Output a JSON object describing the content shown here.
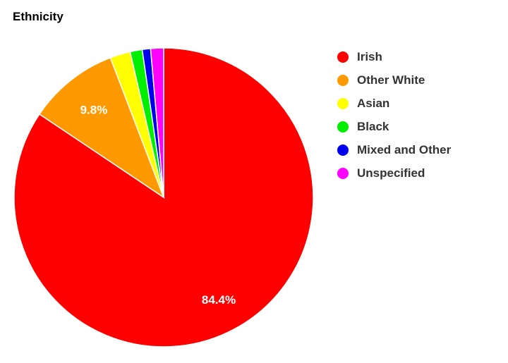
{
  "chart_data": {
    "type": "pie",
    "title": "Ethnicity",
    "slices": [
      {
        "label": "Irish",
        "value": 84.4,
        "color": "#ff0000",
        "data_label": "84.4%"
      },
      {
        "label": "Other White",
        "value": 9.8,
        "color": "#ff9900",
        "data_label": "9.8%"
      },
      {
        "label": "Asian",
        "value": 2.2,
        "color": "#ffff00"
      },
      {
        "label": "Black",
        "value": 1.3,
        "color": "#00ee00"
      },
      {
        "label": "Mixed and Other",
        "value": 0.9,
        "color": "#0000ee"
      },
      {
        "label": "Unspecified",
        "value": 1.4,
        "color": "#ff00ff"
      }
    ],
    "legend_position": "right"
  }
}
